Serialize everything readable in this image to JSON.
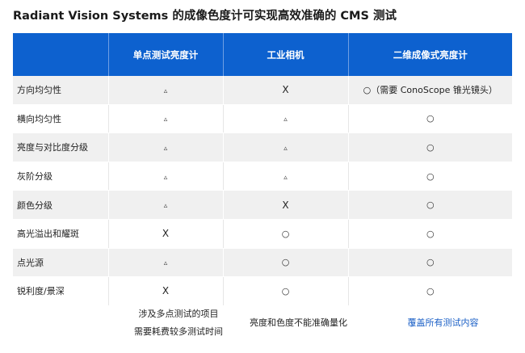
{
  "title": "Radiant Vision Systems 的成像色度计可实现高效准确的 CMS 测试",
  "table": {
    "headers": [
      "",
      "单点测试亮度计",
      "工业相机",
      "二维成像式亮度计"
    ],
    "rows": [
      {
        "feature": "方向均匀性",
        "cells": [
          "▵",
          "X",
          "○（需要 ConoScope 锥光镜头）"
        ]
      },
      {
        "feature": "横向均匀性",
        "cells": [
          "▵",
          "▵",
          "○"
        ]
      },
      {
        "feature": "亮度与对比度分级",
        "cells": [
          "▵",
          "▵",
          "○"
        ]
      },
      {
        "feature": "灰阶分级",
        "cells": [
          "▵",
          "▵",
          "○"
        ]
      },
      {
        "feature": "颜色分级",
        "cells": [
          "▵",
          "X",
          "○"
        ]
      },
      {
        "feature": "高光溢出和耀斑",
        "cells": [
          "X",
          "○",
          "○"
        ]
      },
      {
        "feature": "点光源",
        "cells": [
          "▵",
          "○",
          "○"
        ]
      },
      {
        "feature": "锐利度/景深",
        "cells": [
          "X",
          "○",
          "○"
        ]
      }
    ]
  },
  "summary": {
    "col1": [
      "涉及多点测试的项目",
      "需要耗费较多测试时间"
    ],
    "col2": "亮度和色度不能准确量化",
    "col3": "覆盖所有测试内容"
  },
  "colors": {
    "header_bg": "#0d61cf",
    "header_text": "#ffffff",
    "stripe": "#f0f0f0",
    "summary_accent": "#1a5fc6"
  }
}
